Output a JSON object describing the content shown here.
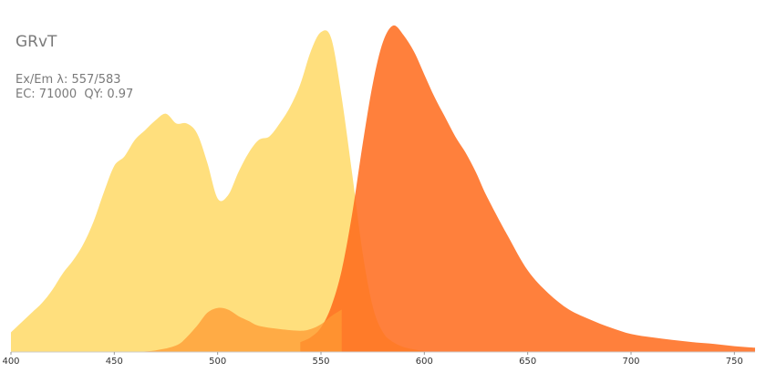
{
  "fluorophore": {
    "name": "GRvT",
    "exem": "Ex/Em λ: 557/583",
    "ec_qy": "EC: 71000  QY: 0.97"
  },
  "chart_data": {
    "type": "area",
    "title": "",
    "xlabel": "",
    "ylabel": "",
    "xlim": [
      400,
      760
    ],
    "ylim": [
      0,
      1
    ],
    "x_ticks": [
      400,
      450,
      500,
      550,
      600,
      650,
      700,
      750
    ],
    "grid": false,
    "legend": "none",
    "series": [
      {
        "role": "excitation",
        "color": "#FFD966",
        "opacity": 0.85,
        "x": [
          400,
          405,
          410,
          415,
          420,
          425,
          430,
          435,
          440,
          445,
          450,
          455,
          460,
          465,
          470,
          475,
          480,
          485,
          490,
          495,
          500,
          505,
          510,
          515,
          520,
          525,
          530,
          535,
          540,
          545,
          550,
          555,
          560,
          565,
          570,
          575,
          580,
          585,
          590,
          595,
          600
        ],
        "y": [
          0.06,
          0.09,
          0.12,
          0.15,
          0.19,
          0.24,
          0.28,
          0.33,
          0.4,
          0.49,
          0.57,
          0.6,
          0.65,
          0.68,
          0.71,
          0.73,
          0.7,
          0.7,
          0.67,
          0.58,
          0.47,
          0.48,
          0.55,
          0.61,
          0.65,
          0.66,
          0.7,
          0.75,
          0.82,
          0.92,
          0.98,
          0.96,
          0.78,
          0.55,
          0.31,
          0.14,
          0.06,
          0.03,
          0.015,
          0.008,
          0.003
        ]
      },
      {
        "role": "emission",
        "color": "#FF6A1A",
        "opacity": 0.85,
        "x": [
          540,
          545,
          550,
          555,
          560,
          565,
          570,
          575,
          580,
          585,
          590,
          595,
          600,
          605,
          610,
          615,
          620,
          625,
          630,
          640,
          650,
          660,
          670,
          680,
          690,
          700,
          710,
          720,
          730,
          740,
          750,
          760
        ],
        "y": [
          0.03,
          0.045,
          0.075,
          0.14,
          0.25,
          0.42,
          0.63,
          0.82,
          0.95,
          1.0,
          0.97,
          0.92,
          0.85,
          0.78,
          0.72,
          0.66,
          0.61,
          0.55,
          0.48,
          0.36,
          0.25,
          0.18,
          0.13,
          0.1,
          0.075,
          0.055,
          0.045,
          0.037,
          0.03,
          0.025,
          0.018,
          0.013
        ]
      },
      {
        "role": "two-photon",
        "color": "#FF9933",
        "opacity": 0.75,
        "x": [
          460,
          470,
          480,
          485,
          490,
          495,
          500,
          505,
          510,
          515,
          520,
          530,
          540,
          545,
          550,
          555,
          560
        ],
        "y": [
          0.0,
          0.005,
          0.02,
          0.045,
          0.08,
          0.12,
          0.135,
          0.13,
          0.11,
          0.095,
          0.08,
          0.07,
          0.065,
          0.07,
          0.085,
          0.11,
          0.13
        ]
      }
    ]
  }
}
